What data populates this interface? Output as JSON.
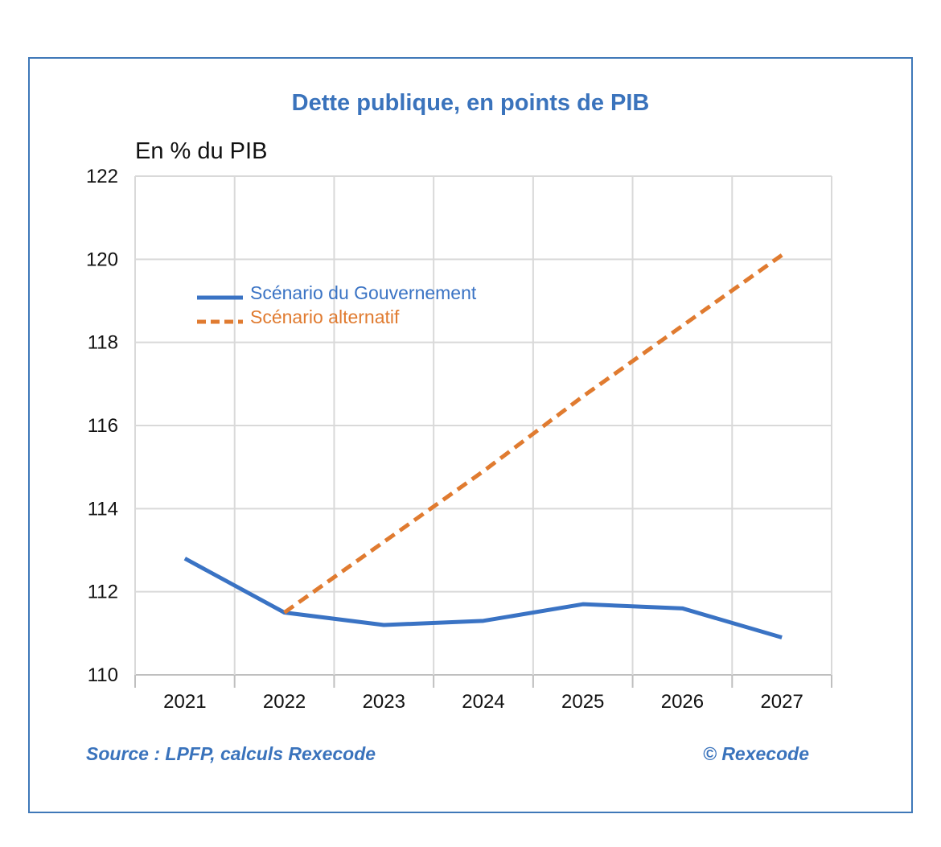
{
  "title": "Dette publique, en points de PIB",
  "unit_label": "En % du PIB",
  "source": "Source : LPFP, calculs Rexecode",
  "copyright": "© Rexecode",
  "colors": {
    "frame": "#3f78b8",
    "title": "#3a73bc",
    "series_gov": "#3a73c4",
    "series_alt": "#e07b30",
    "grid": "#d9d9d9"
  },
  "chart_data": {
    "type": "line",
    "categories": [
      "2021",
      "2022",
      "2023",
      "2024",
      "2025",
      "2026",
      "2027"
    ],
    "ylim": [
      110,
      122
    ],
    "yticks": [
      110,
      112,
      114,
      116,
      118,
      120,
      122
    ],
    "grid": true,
    "legend_position": "top-left",
    "series": [
      {
        "name": "Scénario du Gouvernement",
        "style": "solid",
        "color": "#3a73c4",
        "values": [
          112.8,
          111.5,
          111.2,
          111.3,
          111.7,
          111.6,
          110.9
        ]
      },
      {
        "name": "Scénario alternatif",
        "style": "dashed",
        "color": "#e07b30",
        "values": [
          null,
          111.5,
          113.2,
          114.9,
          116.7,
          118.4,
          120.1
        ]
      }
    ]
  }
}
